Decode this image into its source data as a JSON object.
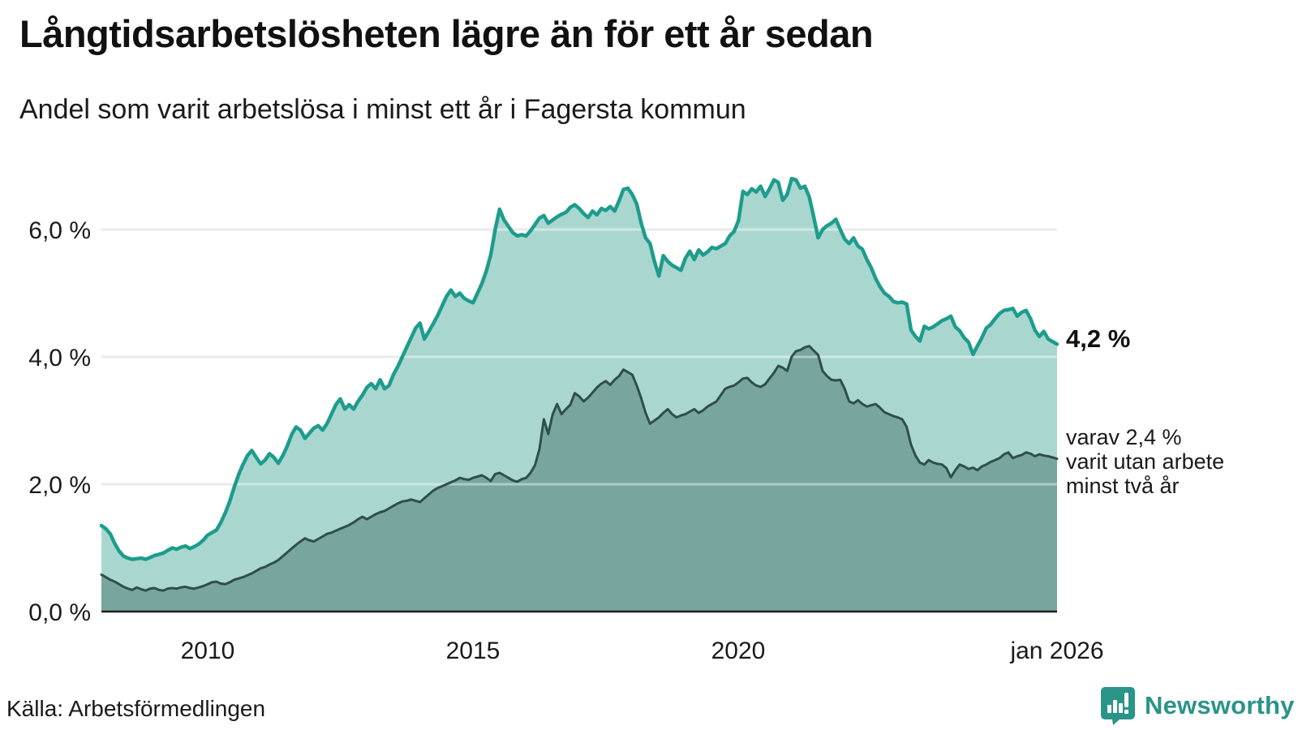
{
  "header": {
    "title": "Långtidsarbetslösheten lägre än för ett år sedan",
    "subtitle": "Andel som varit arbetslösa i minst ett år i Fagersta kommun"
  },
  "annotations": {
    "total_label": "4,2 %",
    "subset_line1": "varav 2,4 %",
    "subset_line2": "varit utan arbete",
    "subset_line3": "minst två år"
  },
  "footer": {
    "source": "Källa: Arbetsförmedlingen",
    "brand": "Newsworthy"
  },
  "colors": {
    "total_line": "#1e9c8c",
    "total_fill": "#a9d7d0",
    "subset_line": "#304e49",
    "subset_fill": "#78a69e",
    "gridline": "#dcdcdc",
    "gridline_overlay": "rgba(255,255,255,0.42)",
    "axis_line": "#1f1f1f",
    "brand_teal": "#2a9488"
  },
  "chart_data": {
    "type": "area",
    "frequency": "monthly",
    "x_start": "2008-01",
    "x_end": "2026-01",
    "ylim": [
      0,
      7
    ],
    "grid": true,
    "yticks": [
      {
        "label": "0,0 %",
        "value": 0
      },
      {
        "label": "2,0 %",
        "value": 2
      },
      {
        "label": "4,0 %",
        "value": 4
      },
      {
        "label": "6,0 %",
        "value": 6
      }
    ],
    "xticks": [
      {
        "label": "2010",
        "index": 24
      },
      {
        "label": "2015",
        "index": 84
      },
      {
        "label": "2020",
        "index": 144
      },
      {
        "label": "jan 2026",
        "index": 216
      }
    ],
    "series": [
      {
        "name": "Andel arbetslösa minst ett år",
        "end_label": "4,2 %",
        "end_value": 4.2,
        "values": [
          1.35,
          1.3,
          1.22,
          1.07,
          0.95,
          0.87,
          0.84,
          0.82,
          0.83,
          0.84,
          0.82,
          0.85,
          0.88,
          0.9,
          0.92,
          0.96,
          1.0,
          0.98,
          1.01,
          1.03,
          0.99,
          1.02,
          1.06,
          1.12,
          1.2,
          1.24,
          1.28,
          1.4,
          1.55,
          1.73,
          1.95,
          2.15,
          2.31,
          2.45,
          2.53,
          2.42,
          2.32,
          2.38,
          2.48,
          2.42,
          2.33,
          2.45,
          2.6,
          2.78,
          2.9,
          2.85,
          2.72,
          2.8,
          2.88,
          2.92,
          2.85,
          2.95,
          3.1,
          3.25,
          3.34,
          3.18,
          3.25,
          3.18,
          3.3,
          3.4,
          3.52,
          3.58,
          3.5,
          3.64,
          3.5,
          3.55,
          3.72,
          3.85,
          4.0,
          4.15,
          4.3,
          4.45,
          4.53,
          4.28,
          4.4,
          4.52,
          4.65,
          4.8,
          4.95,
          5.05,
          4.95,
          5.0,
          4.92,
          4.88,
          4.85,
          5.0,
          5.15,
          5.35,
          5.6,
          6.0,
          6.32,
          6.15,
          6.05,
          5.95,
          5.9,
          5.92,
          5.9,
          5.98,
          6.08,
          6.18,
          6.22,
          6.1,
          6.15,
          6.2,
          6.24,
          6.27,
          6.35,
          6.39,
          6.33,
          6.25,
          6.19,
          6.29,
          6.23,
          6.33,
          6.3,
          6.36,
          6.29,
          6.45,
          6.63,
          6.65,
          6.55,
          6.4,
          6.1,
          5.87,
          5.78,
          5.5,
          5.27,
          5.59,
          5.5,
          5.44,
          5.4,
          5.36,
          5.55,
          5.66,
          5.53,
          5.68,
          5.6,
          5.65,
          5.72,
          5.7,
          5.74,
          5.78,
          5.9,
          5.97,
          6.14,
          6.6,
          6.55,
          6.64,
          6.59,
          6.68,
          6.52,
          6.64,
          6.78,
          6.74,
          6.46,
          6.55,
          6.8,
          6.78,
          6.65,
          6.68,
          6.51,
          6.2,
          5.87,
          6.0,
          6.06,
          6.1,
          6.16,
          6.0,
          5.85,
          5.78,
          5.87,
          5.74,
          5.69,
          5.53,
          5.4,
          5.23,
          5.1,
          5.0,
          4.95,
          4.87,
          4.85,
          4.86,
          4.83,
          4.42,
          4.32,
          4.25,
          4.48,
          4.44,
          4.47,
          4.52,
          4.57,
          4.6,
          4.64,
          4.47,
          4.41,
          4.3,
          4.23,
          4.04,
          4.17,
          4.3,
          4.45,
          4.51,
          4.6,
          4.68,
          4.73,
          4.74,
          4.76,
          4.64,
          4.7,
          4.73,
          4.6,
          4.42,
          4.32,
          4.4,
          4.28,
          4.24,
          4.2
        ]
      },
      {
        "name": "Andel arbetslösa minst två år",
        "end_label": "2,4 %",
        "end_value": 2.4,
        "values": [
          0.58,
          0.54,
          0.5,
          0.47,
          0.43,
          0.39,
          0.36,
          0.34,
          0.38,
          0.35,
          0.33,
          0.36,
          0.37,
          0.34,
          0.33,
          0.36,
          0.37,
          0.36,
          0.38,
          0.39,
          0.37,
          0.36,
          0.38,
          0.4,
          0.43,
          0.46,
          0.47,
          0.44,
          0.43,
          0.46,
          0.5,
          0.52,
          0.54,
          0.57,
          0.6,
          0.64,
          0.68,
          0.7,
          0.74,
          0.77,
          0.81,
          0.87,
          0.93,
          0.99,
          1.05,
          1.1,
          1.15,
          1.12,
          1.1,
          1.14,
          1.18,
          1.22,
          1.24,
          1.27,
          1.3,
          1.33,
          1.36,
          1.4,
          1.45,
          1.49,
          1.45,
          1.49,
          1.53,
          1.56,
          1.58,
          1.62,
          1.66,
          1.7,
          1.73,
          1.74,
          1.76,
          1.74,
          1.72,
          1.78,
          1.84,
          1.9,
          1.94,
          1.97,
          2.0,
          2.03,
          2.06,
          2.1,
          2.08,
          2.07,
          2.1,
          2.12,
          2.14,
          2.1,
          2.05,
          2.16,
          2.18,
          2.14,
          2.1,
          2.06,
          2.04,
          2.08,
          2.1,
          2.18,
          2.3,
          2.55,
          3.02,
          2.79,
          3.1,
          3.26,
          3.1,
          3.18,
          3.25,
          3.43,
          3.38,
          3.3,
          3.36,
          3.44,
          3.52,
          3.58,
          3.62,
          3.56,
          3.64,
          3.7,
          3.8,
          3.76,
          3.72,
          3.55,
          3.35,
          3.12,
          2.95,
          3.0,
          3.05,
          3.12,
          3.18,
          3.1,
          3.05,
          3.08,
          3.1,
          3.14,
          3.18,
          3.12,
          3.16,
          3.22,
          3.26,
          3.3,
          3.4,
          3.5,
          3.53,
          3.55,
          3.6,
          3.66,
          3.67,
          3.6,
          3.55,
          3.53,
          3.57,
          3.66,
          3.75,
          3.86,
          3.83,
          3.78,
          4.0,
          4.09,
          4.11,
          4.15,
          4.17,
          4.1,
          4.03,
          3.78,
          3.7,
          3.64,
          3.63,
          3.64,
          3.5,
          3.3,
          3.27,
          3.32,
          3.26,
          3.22,
          3.24,
          3.26,
          3.2,
          3.13,
          3.1,
          3.07,
          3.05,
          3.02,
          2.9,
          2.62,
          2.45,
          2.34,
          2.31,
          2.38,
          2.34,
          2.32,
          2.31,
          2.25,
          2.11,
          2.22,
          2.31,
          2.28,
          2.24,
          2.26,
          2.22,
          2.28,
          2.31,
          2.35,
          2.38,
          2.41,
          2.47,
          2.5,
          2.41,
          2.44,
          2.46,
          2.5,
          2.48,
          2.44,
          2.47,
          2.45,
          2.44,
          2.42,
          2.4
        ]
      }
    ]
  }
}
